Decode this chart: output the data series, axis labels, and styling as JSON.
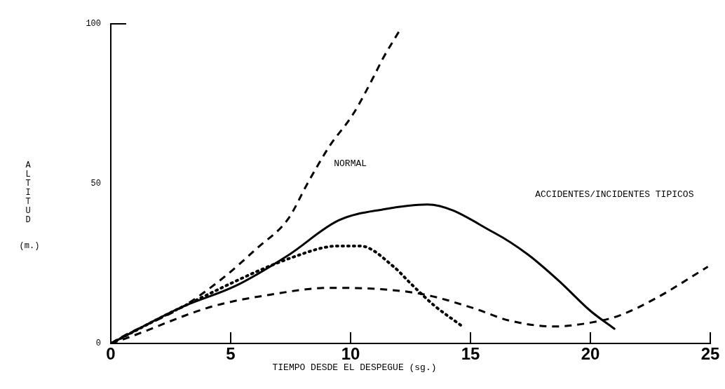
{
  "chart_data": {
    "type": "line",
    "xlabel": "TIEMPO DESDE EL DESPEGUE (sg.)",
    "ylabel": "ALTITUD (m.)",
    "xlim": [
      0,
      25
    ],
    "xticks": [
      0,
      5,
      10,
      15,
      20,
      25
    ],
    "ylim": [
      0,
      100
    ],
    "yticks": [
      0,
      50,
      100
    ],
    "grid": false,
    "legend": false,
    "annotations": [
      "NORMAL",
      "ACCIDENTES/INCIDENTES TIPICOS"
    ],
    "series": [
      {
        "color": "#000000",
        "line_style": "dashed",
        "x": [
          0,
          0.5,
          3.0,
          4.6,
          6.1,
          7.4,
          8.2,
          9.1,
          10.1,
          11.0,
          11.3,
          12.05
        ],
        "values": [
          0,
          2.2,
          11.5,
          20,
          29.8,
          39,
          50,
          61.5,
          71.7,
          84,
          88.5,
          98
        ]
      },
      {
        "color": "#000000",
        "line_style": "solid",
        "x": [
          0,
          3.0,
          5.2,
          7.4,
          9.5,
          11.4,
          13.2,
          16.0,
          17.4,
          18.7,
          20.0,
          21.0
        ],
        "values": [
          0,
          11.5,
          18,
          27.6,
          38.5,
          42,
          43.5,
          34.6,
          27.8,
          19.5,
          10.2,
          4.6
        ]
      },
      {
        "color": "#000000",
        "line_style": "dotted",
        "x": [
          0,
          3.0,
          7.6,
          9.5,
          10.4,
          11.8,
          12.5,
          13.5,
          14.6
        ],
        "values": [
          0,
          11.5,
          27,
          30.5,
          30.5,
          24,
          18.8,
          11.8,
          5.7
        ]
      },
      {
        "color": "#000000",
        "line_style": "dashed",
        "x": [
          0,
          0.6,
          4.2,
          6.6,
          9.1,
          12.8,
          15.1,
          16.6,
          18.5,
          20.0,
          21.2,
          22.7,
          24.9
        ],
        "values": [
          0,
          1.5,
          11.5,
          15.2,
          17.4,
          15.7,
          11.1,
          7.2,
          5.3,
          6.5,
          8.7,
          14,
          24
        ]
      }
    ]
  }
}
